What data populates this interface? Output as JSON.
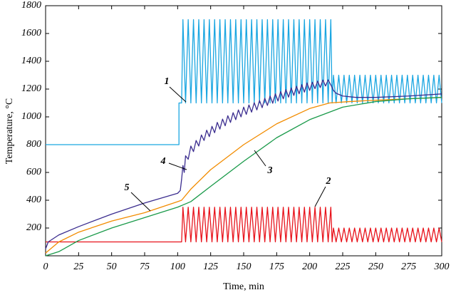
{
  "chart_data": {
    "type": "line",
    "xlabel": "Time, min",
    "ylabel": "Temperature, °C",
    "xlim": [
      0,
      300
    ],
    "xticks": [
      0,
      25,
      50,
      75,
      100,
      125,
      150,
      175,
      200,
      225,
      250,
      275,
      300
    ],
    "ylim": [
      0,
      1800
    ],
    "yticks": [
      200,
      400,
      600,
      800,
      1000,
      1200,
      1400,
      1600,
      1800
    ],
    "grid": false,
    "annotations": [
      "1",
      "2",
      "3",
      "4",
      "5"
    ],
    "series": [
      {
        "color": "#1aa6e1",
        "x": [
          0,
          101,
          101,
          103,
          104,
          106,
          108,
          110,
          112,
          114,
          116,
          118,
          120,
          122,
          124,
          126,
          128,
          130,
          132,
          134,
          136,
          138,
          140,
          142,
          144,
          146,
          148,
          150,
          152,
          154,
          156,
          158,
          160,
          162,
          164,
          166,
          168,
          170,
          172,
          174,
          176,
          178,
          180,
          182,
          184,
          186,
          188,
          190,
          192,
          194,
          196,
          198,
          200,
          202,
          204,
          206,
          208,
          210,
          212,
          214,
          216,
          217,
          218,
          220,
          222,
          224,
          226,
          228,
          230,
          232,
          234,
          236,
          238,
          240,
          242,
          244,
          246,
          248,
          250,
          252,
          254,
          256,
          258,
          260,
          262,
          264,
          266,
          268,
          270,
          272,
          274,
          276,
          278,
          280,
          282,
          284,
          286,
          288,
          290,
          292,
          294,
          296,
          298,
          300
        ],
        "values": [
          800,
          800,
          1100,
          1100,
          1700,
          1100,
          1700,
          1100,
          1700,
          1100,
          1700,
          1100,
          1700,
          1100,
          1700,
          1100,
          1700,
          1100,
          1700,
          1100,
          1700,
          1100,
          1700,
          1100,
          1700,
          1100,
          1700,
          1100,
          1700,
          1100,
          1700,
          1100,
          1700,
          1100,
          1700,
          1100,
          1700,
          1100,
          1700,
          1100,
          1700,
          1100,
          1700,
          1100,
          1700,
          1100,
          1700,
          1100,
          1700,
          1100,
          1700,
          1100,
          1700,
          1100,
          1700,
          1100,
          1700,
          1100,
          1700,
          1100,
          1700,
          1100,
          1300,
          1100,
          1300,
          1100,
          1300,
          1100,
          1300,
          1100,
          1300,
          1100,
          1300,
          1100,
          1300,
          1100,
          1300,
          1100,
          1300,
          1100,
          1300,
          1100,
          1300,
          1100,
          1300,
          1100,
          1300,
          1100,
          1300,
          1100,
          1300,
          1100,
          1300,
          1100,
          1300,
          1100,
          1300,
          1100,
          1300,
          1100,
          1300,
          1100,
          1300,
          1100
        ]
      },
      {
        "color": "#e8131b",
        "x": [
          0,
          101,
          101,
          103,
          104,
          106,
          108,
          110,
          112,
          114,
          116,
          118,
          120,
          122,
          124,
          126,
          128,
          130,
          132,
          134,
          136,
          138,
          140,
          142,
          144,
          146,
          148,
          150,
          152,
          154,
          156,
          158,
          160,
          162,
          164,
          166,
          168,
          170,
          172,
          174,
          176,
          178,
          180,
          182,
          184,
          186,
          188,
          190,
          192,
          194,
          196,
          198,
          200,
          202,
          204,
          206,
          208,
          210,
          212,
          214,
          216,
          217,
          218,
          220,
          222,
          224,
          226,
          228,
          230,
          232,
          234,
          236,
          238,
          240,
          242,
          244,
          246,
          248,
          250,
          252,
          254,
          256,
          258,
          260,
          262,
          264,
          266,
          268,
          270,
          272,
          274,
          276,
          278,
          280,
          282,
          284,
          286,
          288,
          290,
          292,
          294,
          296,
          298,
          300
        ],
        "values": [
          100,
          100,
          100,
          100,
          350,
          100,
          350,
          100,
          350,
          100,
          350,
          100,
          350,
          100,
          350,
          100,
          350,
          100,
          350,
          100,
          350,
          100,
          350,
          100,
          350,
          100,
          350,
          100,
          350,
          100,
          350,
          100,
          350,
          100,
          350,
          100,
          350,
          100,
          350,
          100,
          350,
          100,
          350,
          100,
          350,
          100,
          350,
          100,
          350,
          100,
          350,
          100,
          350,
          100,
          350,
          100,
          350,
          100,
          350,
          100,
          350,
          100,
          200,
          100,
          200,
          100,
          200,
          100,
          200,
          100,
          200,
          100,
          200,
          100,
          200,
          100,
          200,
          100,
          200,
          100,
          200,
          100,
          200,
          100,
          200,
          100,
          200,
          100,
          200,
          100,
          200,
          100,
          200,
          100,
          200,
          100,
          200,
          100,
          200,
          100,
          200,
          100,
          200,
          100
        ]
      },
      {
        "color": "#f28c00",
        "x": [
          0,
          10,
          25,
          50,
          75,
          100,
          103,
          110,
          125,
          150,
          175,
          200,
          215,
          230,
          250,
          275,
          300
        ],
        "values": [
          20,
          100,
          170,
          250,
          310,
          390,
          400,
          480,
          620,
          800,
          950,
          1060,
          1100,
          1110,
          1120,
          1130,
          1140
        ]
      },
      {
        "color": "#1a9a4a",
        "x": [
          0,
          10,
          25,
          50,
          75,
          100,
          110,
          125,
          150,
          175,
          200,
          225,
          250,
          275,
          300
        ],
        "values": [
          0,
          30,
          110,
          200,
          275,
          350,
          390,
          500,
          680,
          850,
          980,
          1070,
          1110,
          1130,
          1140
        ]
      },
      {
        "color": "#3b2d8f",
        "x": [
          0,
          2,
          10,
          25,
          50,
          75,
          100,
          102,
          103,
          104,
          105,
          106,
          108,
          110,
          112,
          114,
          116,
          118,
          120,
          122,
          124,
          126,
          128,
          130,
          132,
          134,
          136,
          138,
          140,
          142,
          144,
          146,
          148,
          150,
          152,
          154,
          156,
          158,
          160,
          162,
          164,
          166,
          168,
          170,
          172,
          174,
          176,
          178,
          180,
          182,
          184,
          186,
          188,
          190,
          192,
          194,
          196,
          198,
          200,
          202,
          204,
          206,
          208,
          210,
          212,
          214,
          216,
          218,
          220,
          225,
          235,
          250,
          275,
          300
        ],
        "values": [
          50,
          100,
          150,
          210,
          300,
          380,
          450,
          470,
          550,
          650,
          600,
          720,
          695,
          790,
          750,
          830,
          790,
          870,
          830,
          904,
          858,
          932,
          886,
          960,
          912,
          984,
          936,
          1008,
          960,
          1030,
          980,
          1050,
          1000,
          1070,
          1018,
          1086,
          1034,
          1102,
          1050,
          1118,
          1066,
          1134,
          1082,
          1150,
          1098,
          1166,
          1114,
          1182,
          1130,
          1196,
          1142,
          1208,
          1154,
          1220,
          1166,
          1232,
          1178,
          1244,
          1190,
          1249,
          1203,
          1257,
          1211,
          1265,
          1222,
          1266,
          1230,
          1190,
          1170,
          1150,
          1140,
          1140,
          1150,
          1165
        ]
      }
    ]
  }
}
